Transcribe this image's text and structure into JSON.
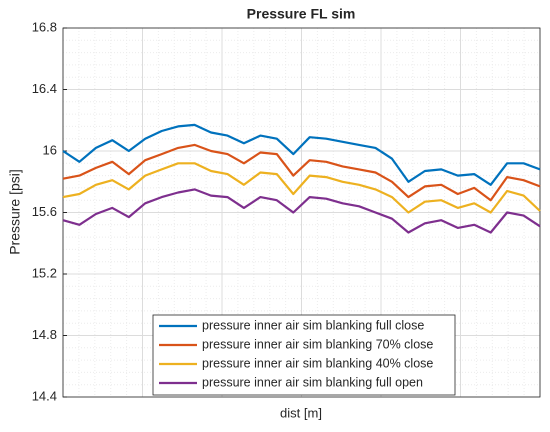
{
  "chart_data": {
    "type": "line",
    "title": "Pressure FL sim",
    "x_label": "dist [m]",
    "y_label": "Pressure [psi]",
    "categories": [
      null,
      null,
      null,
      null,
      null,
      null,
      null,
      null,
      null,
      null,
      null,
      null,
      null,
      null,
      null,
      null,
      null,
      null,
      null,
      null,
      null,
      null,
      null,
      null,
      null,
      null,
      null,
      null,
      null,
      null
    ],
    "series": [
      {
        "name": "pressure inner air sim blanking full close",
        "color": "#0072BD",
        "values": [
          16.0,
          15.93,
          16.02,
          16.07,
          16.0,
          16.08,
          16.13,
          16.16,
          16.17,
          16.12,
          16.1,
          16.05,
          16.1,
          16.08,
          15.98,
          16.09,
          16.08,
          16.06,
          16.04,
          16.02,
          15.95,
          15.8,
          15.87,
          15.88,
          15.84,
          15.85,
          15.78,
          15.92,
          15.92,
          15.88
        ]
      },
      {
        "name": "pressure inner air sim blanking 70% close",
        "color": "#D95319",
        "values": [
          15.82,
          15.84,
          15.89,
          15.93,
          15.85,
          15.94,
          15.98,
          16.02,
          16.04,
          16.0,
          15.98,
          15.92,
          15.99,
          15.98,
          15.84,
          15.94,
          15.93,
          15.9,
          15.88,
          15.86,
          15.8,
          15.7,
          15.77,
          15.78,
          15.72,
          15.76,
          15.68,
          15.83,
          15.81,
          15.77
        ]
      },
      {
        "name": "pressure inner air sim blanking 40% close",
        "color": "#EDB120",
        "values": [
          15.7,
          15.72,
          15.78,
          15.81,
          15.75,
          15.84,
          15.88,
          15.92,
          15.92,
          15.87,
          15.85,
          15.78,
          15.86,
          15.85,
          15.72,
          15.84,
          15.83,
          15.8,
          15.78,
          15.75,
          15.7,
          15.6,
          15.67,
          15.68,
          15.63,
          15.66,
          15.6,
          15.74,
          15.71,
          15.61
        ]
      },
      {
        "name": "pressure inner air sim blanking full open",
        "color": "#7E2F8E",
        "values": [
          15.55,
          15.52,
          15.59,
          15.63,
          15.57,
          15.66,
          15.7,
          15.73,
          15.75,
          15.71,
          15.7,
          15.63,
          15.7,
          15.68,
          15.6,
          15.7,
          15.69,
          15.66,
          15.64,
          15.6,
          15.56,
          15.47,
          15.53,
          15.55,
          15.5,
          15.52,
          15.47,
          15.6,
          15.58,
          15.51
        ]
      }
    ],
    "ylim": [
      14.4,
      16.8
    ],
    "yticks": [
      14.4,
      14.8,
      15.2,
      15.6,
      16,
      16.4,
      16.8
    ],
    "grid": true,
    "legend_location": "south"
  }
}
